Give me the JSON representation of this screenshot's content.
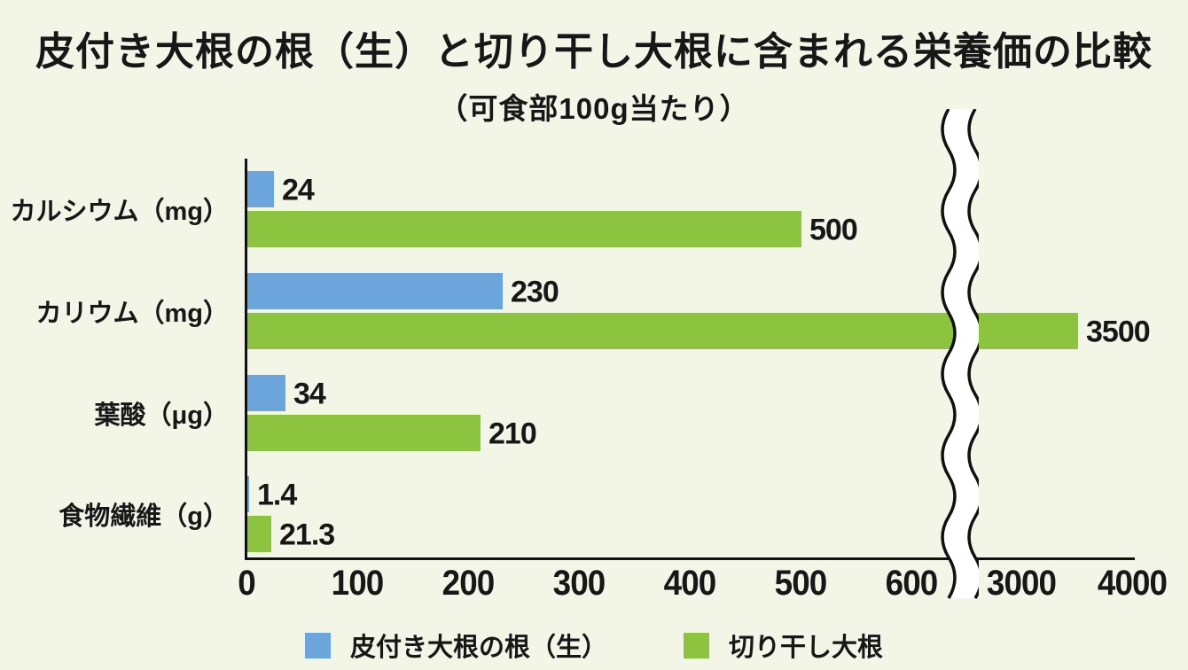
{
  "title": "皮付き大根の根（生）と切り干し大根に含まれる栄養価の比較",
  "subtitle": "（可食部100g当たり）",
  "colors": {
    "background": "#f3f5e7",
    "series_raw_daikon": "#6ba5db",
    "series_dried_daikon": "#8cc440",
    "axis": "#111111",
    "text": "#171717",
    "break_band_fill": "#ffffff"
  },
  "chart_data": {
    "type": "bar",
    "orientation": "horizontal",
    "title": "皮付き大根の根（生）と切り干し大根に含まれる栄養価の比較",
    "subtitle": "（可食部100g当たり）",
    "categories": [
      "カルシウム（mg）",
      "カリウム（mg）",
      "葉酸（μg）",
      "食物繊維（g）"
    ],
    "series": [
      {
        "name": "皮付き大根の根（生）",
        "color": "#6ba5db",
        "values": [
          24,
          230,
          34,
          1.4
        ]
      },
      {
        "name": "切り干し大根",
        "color": "#8cc440",
        "values": [
          500,
          3500,
          210,
          21.3
        ]
      }
    ],
    "value_labels": [
      [
        "24",
        "230",
        "34",
        "1.4"
      ],
      [
        "500",
        "3500",
        "210",
        "21.3"
      ]
    ],
    "x_axis": {
      "ticks_before_break": [
        0,
        100,
        200,
        300,
        400,
        500,
        600
      ],
      "ticks_after_break": [
        3000,
        4000
      ],
      "has_break": true,
      "break_between": [
        600,
        3000
      ]
    },
    "ylabel": "",
    "xlabel": "",
    "grid": false,
    "legend_position": "bottom"
  }
}
